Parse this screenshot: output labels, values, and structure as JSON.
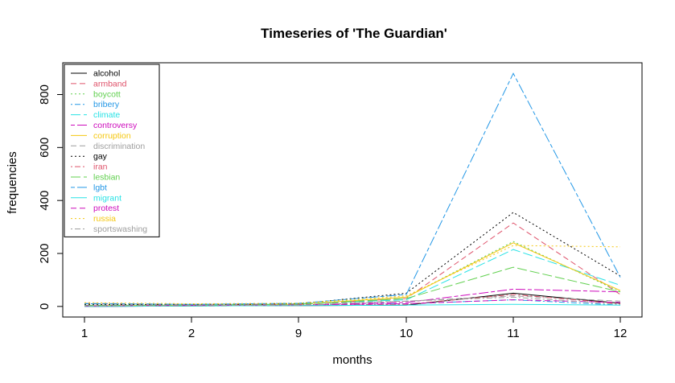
{
  "chart_data": {
    "type": "line",
    "title": "Timeseries of 'The Guardian'",
    "xlabel": "months",
    "ylabel": "frequencies",
    "categories": [
      "1",
      "2",
      "9",
      "10",
      "11",
      "12"
    ],
    "ylim": [
      -40,
      920
    ],
    "yticks": [
      0,
      200,
      400,
      600,
      800
    ],
    "grid": false,
    "legend_position": "top-left",
    "series": [
      {
        "name": "alcohol",
        "color": "#000000",
        "dash": "",
        "values": [
          0,
          2,
          3,
          5,
          50,
          12
        ]
      },
      {
        "name": "armband",
        "color": "#DF536B",
        "dash": "7,4",
        "values": [
          10,
          6,
          8,
          30,
          315,
          45
        ]
      },
      {
        "name": "boycott",
        "color": "#61D04F",
        "dash": "2,3",
        "values": [
          5,
          5,
          8,
          35,
          245,
          55
        ]
      },
      {
        "name": "bribery",
        "color": "#2297E6",
        "dash": "2,3,7,3",
        "values": [
          0,
          2,
          4,
          10,
          25,
          5
        ]
      },
      {
        "name": "climate",
        "color": "#28E2E5",
        "dash": "12,4",
        "values": [
          2,
          4,
          10,
          25,
          215,
          80
        ]
      },
      {
        "name": "controversy",
        "color": "#CD0BBC",
        "dash": "5,3,12,3",
        "values": [
          2,
          4,
          6,
          15,
          65,
          55
        ]
      },
      {
        "name": "corruption",
        "color": "#F5C710",
        "dash": "",
        "values": [
          3,
          5,
          8,
          35,
          240,
          60
        ]
      },
      {
        "name": "discrimination",
        "color": "#9E9E9E",
        "dash": "7,4",
        "values": [
          12,
          8,
          10,
          20,
          40,
          20
        ]
      },
      {
        "name": "gay",
        "color": "#000000",
        "dash": "2,3",
        "values": [
          8,
          6,
          10,
          50,
          355,
          115
        ]
      },
      {
        "name": "iran",
        "color": "#DF536B",
        "dash": "2,3,7,3",
        "values": [
          0,
          2,
          3,
          8,
          45,
          10
        ]
      },
      {
        "name": "lesbian",
        "color": "#61D04F",
        "dash": "12,4",
        "values": [
          4,
          5,
          8,
          30,
          148,
          55
        ]
      },
      {
        "name": "lgbt",
        "color": "#2297E6",
        "dash": "5,3,12,3",
        "values": [
          10,
          8,
          12,
          45,
          880,
          110
        ]
      },
      {
        "name": "migrant",
        "color": "#28E2E5",
        "dash": "",
        "values": [
          0,
          2,
          3,
          5,
          8,
          5
        ]
      },
      {
        "name": "protest",
        "color": "#CD0BBC",
        "dash": "7,4",
        "values": [
          2,
          4,
          6,
          10,
          25,
          15
        ]
      },
      {
        "name": "russia",
        "color": "#F5C710",
        "dash": "2,3",
        "values": [
          14,
          10,
          12,
          40,
          230,
          225
        ]
      },
      {
        "name": "sportswashing",
        "color": "#9E9E9E",
        "dash": "2,3,7,3",
        "values": [
          2,
          3,
          5,
          20,
          35,
          8
        ]
      }
    ]
  }
}
